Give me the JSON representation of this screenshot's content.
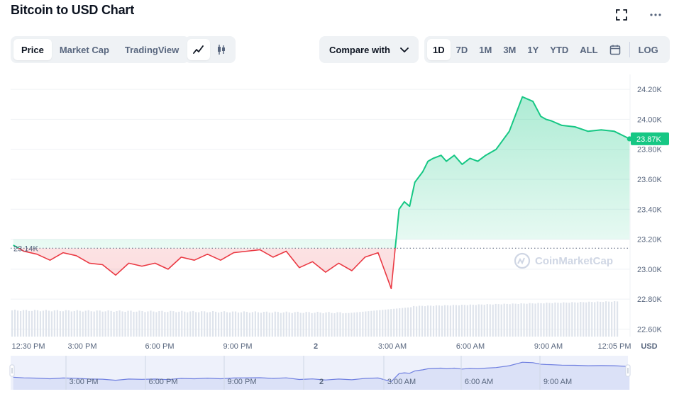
{
  "title": "Bitcoin to USD Chart",
  "toolbar": {
    "tabs": [
      "Price",
      "Market Cap",
      "TradingView"
    ],
    "active_tab": "Price",
    "compare_label": "Compare with",
    "ranges": [
      "1D",
      "7D",
      "1M",
      "3M",
      "1Y",
      "YTD",
      "ALL"
    ],
    "active_range": "1D",
    "log_label": "LOG"
  },
  "icons": {
    "expand": "expand-icon",
    "more": "more-icon",
    "line_chart": "line-chart-icon",
    "candles": "candlestick-icon",
    "calendar": "calendar-icon",
    "chevron": "chevron-down-icon"
  },
  "colors": {
    "up": "#16c784",
    "down": "#ea3943",
    "text_muted": "#58667e"
  },
  "chart_data": {
    "type": "line",
    "title": "",
    "xlabel": "",
    "ylabel": "USD",
    "ylim": [
      22550,
      24300
    ],
    "yticks": [
      22600,
      22800,
      23000,
      23200,
      23400,
      23600,
      23800,
      24000,
      24200
    ],
    "ytick_labels": [
      "22.60K",
      "22.80K",
      "23.00K",
      "23.20K",
      "23.40K",
      "23.60K",
      "23.80K",
      "24.00K",
      "24.20K"
    ],
    "xlim": [
      12.5,
      36.1
    ],
    "xticks": [
      12.5,
      15,
      18,
      21,
      24,
      27,
      30,
      33,
      36.08
    ],
    "xtick_labels": [
      "12:30 PM",
      "3:00 PM",
      "6:00 PM",
      "9:00 PM",
      "2",
      "3:00 AM",
      "6:00 AM",
      "9:00 AM",
      "12:05 PM"
    ],
    "navigator_ticks": [
      "3:00 PM",
      "6:00 PM",
      "9:00 PM",
      "2",
      "3:00 AM",
      "6:00 AM",
      "9:00 AM"
    ],
    "baseline": 23140,
    "baseline_label": "23.14K",
    "current_label": "23.87K",
    "watermark": "CoinMarketCap",
    "x_hours": [
      12.6,
      13.0,
      13.5,
      14.0,
      14.5,
      15.0,
      15.5,
      16.0,
      16.5,
      17.0,
      17.5,
      18.0,
      18.5,
      19.0,
      19.5,
      20.0,
      20.5,
      21.0,
      21.5,
      22.0,
      22.5,
      23.0,
      23.5,
      24.0,
      24.5,
      25.0,
      25.5,
      26.0,
      26.5,
      27.0,
      27.3,
      27.5,
      27.7,
      27.9,
      28.2,
      28.4,
      28.6,
      28.9,
      29.1,
      29.4,
      29.7,
      30.0,
      30.3,
      30.6,
      31.0,
      31.5,
      32.0,
      32.4,
      32.7,
      32.9,
      33.1,
      33.5,
      34.0,
      34.5,
      35.0,
      35.5,
      36.08
    ],
    "prices": [
      23160,
      23120,
      23100,
      23060,
      23110,
      23090,
      23040,
      23030,
      22960,
      23040,
      23020,
      23040,
      23000,
      23080,
      23060,
      23100,
      23060,
      23110,
      23120,
      23130,
      23080,
      23120,
      23010,
      23050,
      22980,
      23040,
      22990,
      23080,
      23110,
      22870,
      23400,
      23450,
      23420,
      23580,
      23650,
      23720,
      23740,
      23760,
      23720,
      23760,
      23700,
      23740,
      23720,
      23760,
      23800,
      23920,
      24150,
      24120,
      24020,
      24000,
      23990,
      23960,
      23950,
      23920,
      23930,
      23920,
      23870
    ],
    "volume_min": 0.55,
    "volume_max": 1.0
  }
}
